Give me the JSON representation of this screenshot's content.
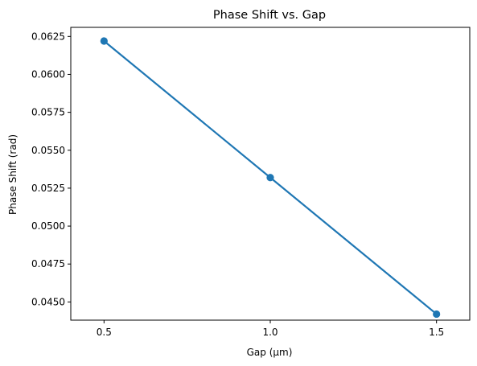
{
  "chart_data": {
    "type": "line",
    "title": "Phase Shift vs. Gap",
    "xlabel": "Gap (µm)",
    "ylabel": "Phase Shift (rad)",
    "xlim": [
      0.4,
      1.6
    ],
    "ylim": [
      0.0438,
      0.0631
    ],
    "xticks": [
      0.5,
      1.0,
      1.5
    ],
    "xtick_labels": [
      "0.5",
      "1.0",
      "1.5"
    ],
    "yticks": [
      0.045,
      0.0475,
      0.05,
      0.0525,
      0.055,
      0.0575,
      0.06,
      0.0625
    ],
    "ytick_labels": [
      "0.0450",
      "0.0475",
      "0.0500",
      "0.0525",
      "0.0550",
      "0.0575",
      "0.0600",
      "0.0625"
    ],
    "grid": false,
    "series": [
      {
        "x": [
          0.5,
          1.0,
          1.5
        ],
        "values": [
          0.0622,
          0.0532,
          0.0442
        ],
        "color": "#1f77b4",
        "marker": "circle"
      }
    ]
  }
}
